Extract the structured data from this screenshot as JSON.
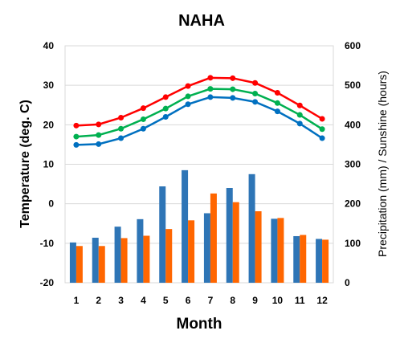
{
  "chart_data": {
    "type": "bar+line",
    "title": "NAHA",
    "xlabel": "Month",
    "ylabel_left": "Temperature (deg. C)",
    "ylabel_right": "Precipitation (mm) / Sunshine (hours)",
    "x": [
      1,
      2,
      3,
      4,
      5,
      6,
      7,
      8,
      9,
      10,
      11,
      12
    ],
    "y_left_range": [
      -20,
      40
    ],
    "y_left_ticks": [
      -20,
      -10,
      0,
      10,
      20,
      30,
      40
    ],
    "y_right_range": [
      0,
      600
    ],
    "y_right_ticks": [
      0,
      100,
      200,
      300,
      400,
      500,
      600
    ],
    "grid": true,
    "legend": "none",
    "lines": [
      {
        "axis": "left",
        "color": "#ff0000",
        "values": [
          19.8,
          20.1,
          21.8,
          24.2,
          27.0,
          29.8,
          31.9,
          31.8,
          30.6,
          28.1,
          24.9,
          21.5
        ]
      },
      {
        "axis": "left",
        "color": "#00b050",
        "values": [
          17.0,
          17.4,
          19.0,
          21.4,
          24.1,
          27.2,
          29.1,
          29.0,
          27.9,
          25.5,
          22.5,
          18.9
        ]
      },
      {
        "axis": "left",
        "color": "#0070c0",
        "values": [
          14.9,
          15.1,
          16.6,
          19.0,
          22.0,
          25.2,
          27.0,
          26.8,
          25.8,
          23.4,
          20.3,
          16.6
        ]
      }
    ],
    "bars": [
      {
        "axis": "right",
        "color": "#2e75b6",
        "values": [
          102,
          114,
          142,
          161,
          244,
          285,
          176,
          240,
          275,
          162,
          118,
          111
        ]
      },
      {
        "axis": "right",
        "color": "#ff6600",
        "values": [
          93,
          93,
          113,
          119,
          136,
          158,
          226,
          204,
          181,
          164,
          121,
          109
        ]
      }
    ]
  }
}
